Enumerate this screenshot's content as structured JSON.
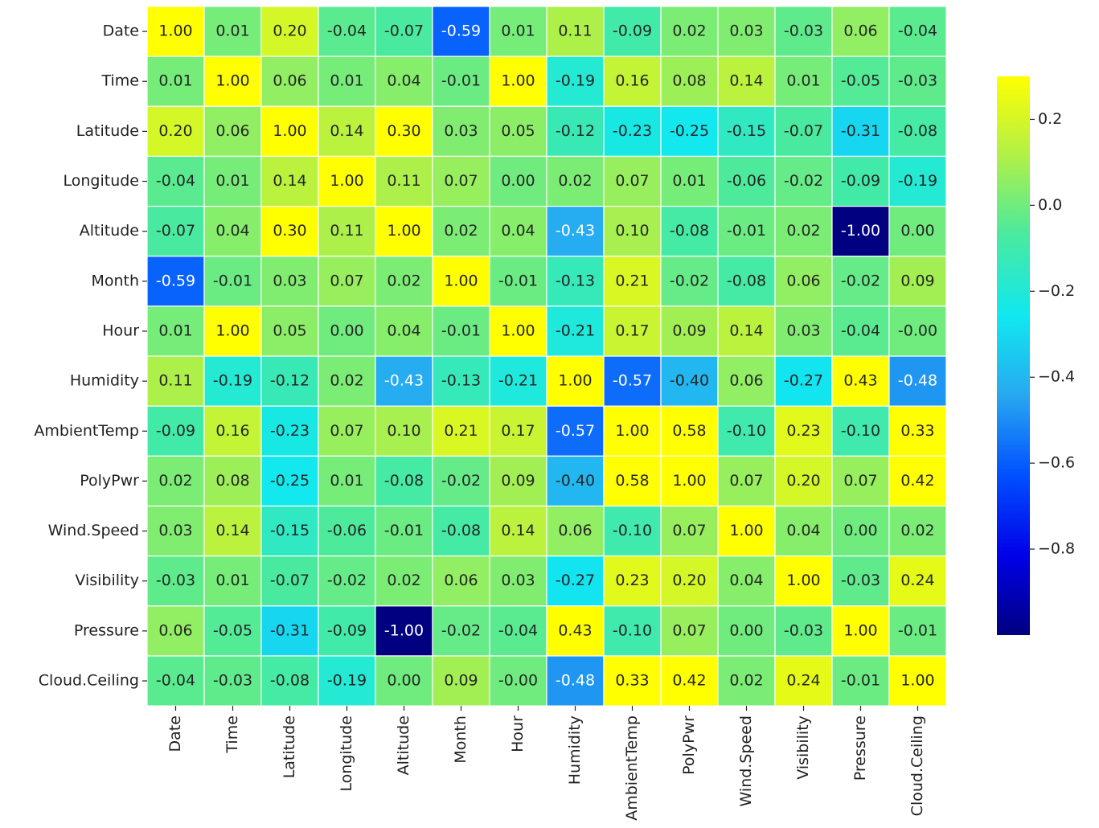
{
  "chart_data": {
    "type": "heatmap",
    "categories": [
      "Date",
      "Time",
      "Latitude",
      "Longitude",
      "Altitude",
      "Month",
      "Hour",
      "Humidity",
      "AmbientTemp",
      "PolyPwr",
      "Wind.Speed",
      "Visibility",
      "Pressure",
      "Cloud.Ceiling"
    ],
    "values": [
      [
        1.0,
        0.01,
        0.2,
        -0.04,
        -0.07,
        -0.59,
        0.01,
        0.11,
        -0.09,
        0.02,
        0.03,
        -0.03,
        0.06,
        -0.04
      ],
      [
        0.01,
        1.0,
        0.06,
        0.01,
        0.04,
        -0.01,
        1.0,
        -0.19,
        0.16,
        0.08,
        0.14,
        0.01,
        -0.05,
        -0.03
      ],
      [
        0.2,
        0.06,
        1.0,
        0.14,
        0.3,
        0.03,
        0.05,
        -0.12,
        -0.23,
        -0.25,
        -0.15,
        -0.07,
        -0.31,
        -0.08
      ],
      [
        -0.04,
        0.01,
        0.14,
        1.0,
        0.11,
        0.07,
        0.0,
        0.02,
        0.07,
        0.01,
        -0.06,
        -0.02,
        -0.09,
        -0.19
      ],
      [
        -0.07,
        0.04,
        0.3,
        0.11,
        1.0,
        0.02,
        0.04,
        -0.43,
        0.1,
        -0.08,
        -0.01,
        0.02,
        -1.0,
        0.0
      ],
      [
        -0.59,
        -0.01,
        0.03,
        0.07,
        0.02,
        1.0,
        -0.01,
        -0.13,
        0.21,
        -0.02,
        -0.08,
        0.06,
        -0.02,
        0.09
      ],
      [
        0.01,
        1.0,
        0.05,
        0.0,
        0.04,
        -0.01,
        1.0,
        -0.21,
        0.17,
        0.09,
        0.14,
        0.03,
        -0.04,
        0
      ],
      [
        0.11,
        -0.19,
        -0.12,
        0.02,
        -0.43,
        -0.13,
        -0.21,
        1.0,
        -0.57,
        -0.4,
        0.06,
        -0.27,
        0.43,
        -0.48
      ],
      [
        -0.09,
        0.16,
        -0.23,
        0.07,
        0.1,
        0.21,
        0.17,
        -0.57,
        1.0,
        0.58,
        -0.1,
        0.23,
        -0.1,
        0.33
      ],
      [
        0.02,
        0.08,
        -0.25,
        0.01,
        -0.08,
        -0.02,
        0.09,
        -0.4,
        0.58,
        1.0,
        0.07,
        0.2,
        0.07,
        0.42
      ],
      [
        0.03,
        0.14,
        -0.15,
        -0.06,
        -0.01,
        -0.08,
        0.14,
        0.06,
        -0.1,
        0.07,
        1.0,
        0.04,
        0.0,
        0.02
      ],
      [
        -0.03,
        0.01,
        -0.07,
        -0.02,
        0.02,
        0.06,
        0.03,
        -0.27,
        0.23,
        0.2,
        0.04,
        1.0,
        -0.03,
        0.24
      ],
      [
        0.06,
        -0.05,
        -0.31,
        -0.09,
        -1.0,
        -0.02,
        -0.04,
        0.43,
        -0.1,
        0.07,
        0.0,
        -0.03,
        1.0,
        -0.01
      ],
      [
        -0.04,
        -0.03,
        -0.08,
        -0.19,
        0.0,
        0.09,
        0,
        -0.48,
        0.33,
        0.42,
        0.02,
        0.24,
        -0.01,
        1.0
      ]
    ],
    "value_labels": [
      [
        "1.00",
        "0.01",
        "0.20",
        "-0.04",
        "-0.07",
        "-0.59",
        "0.01",
        "0.11",
        "-0.09",
        "0.02",
        "0.03",
        "-0.03",
        "0.06",
        "-0.04"
      ],
      [
        "0.01",
        "1.00",
        "0.06",
        "0.01",
        "0.04",
        "-0.01",
        "1.00",
        "-0.19",
        "0.16",
        "0.08",
        "0.14",
        "0.01",
        "-0.05",
        "-0.03"
      ],
      [
        "0.20",
        "0.06",
        "1.00",
        "0.14",
        "0.30",
        "0.03",
        "0.05",
        "-0.12",
        "-0.23",
        "-0.25",
        "-0.15",
        "-0.07",
        "-0.31",
        "-0.08"
      ],
      [
        "-0.04",
        "0.01",
        "0.14",
        "1.00",
        "0.11",
        "0.07",
        "0.00",
        "0.02",
        "0.07",
        "0.01",
        "-0.06",
        "-0.02",
        "-0.09",
        "-0.19"
      ],
      [
        "-0.07",
        "0.04",
        "0.30",
        "0.11",
        "1.00",
        "0.02",
        "0.04",
        "-0.43",
        "0.10",
        "-0.08",
        "-0.01",
        "0.02",
        "-1.00",
        "0.00"
      ],
      [
        "-0.59",
        "-0.01",
        "0.03",
        "0.07",
        "0.02",
        "1.00",
        "-0.01",
        "-0.13",
        "0.21",
        "-0.02",
        "-0.08",
        "0.06",
        "-0.02",
        "0.09"
      ],
      [
        "0.01",
        "1.00",
        "0.05",
        "0.00",
        "0.04",
        "-0.01",
        "1.00",
        "-0.21",
        "0.17",
        "0.09",
        "0.14",
        "0.03",
        "-0.04",
        "-0.00"
      ],
      [
        "0.11",
        "-0.19",
        "-0.12",
        "0.02",
        "-0.43",
        "-0.13",
        "-0.21",
        "1.00",
        "-0.57",
        "-0.40",
        "0.06",
        "-0.27",
        "0.43",
        "-0.48"
      ],
      [
        "-0.09",
        "0.16",
        "-0.23",
        "0.07",
        "0.10",
        "0.21",
        "0.17",
        "-0.57",
        "1.00",
        "0.58",
        "-0.10",
        "0.23",
        "-0.10",
        "0.33"
      ],
      [
        "0.02",
        "0.08",
        "-0.25",
        "0.01",
        "-0.08",
        "-0.02",
        "0.09",
        "-0.40",
        "0.58",
        "1.00",
        "0.07",
        "0.20",
        "0.07",
        "0.42"
      ],
      [
        "0.03",
        "0.14",
        "-0.15",
        "-0.06",
        "-0.01",
        "-0.08",
        "0.14",
        "0.06",
        "-0.10",
        "0.07",
        "1.00",
        "0.04",
        "0.00",
        "0.02"
      ],
      [
        "-0.03",
        "0.01",
        "-0.07",
        "-0.02",
        "0.02",
        "0.06",
        "0.03",
        "-0.27",
        "0.23",
        "0.20",
        "0.04",
        "1.00",
        "-0.03",
        "0.24"
      ],
      [
        "0.06",
        "-0.05",
        "-0.31",
        "-0.09",
        "-1.00",
        "-0.02",
        "-0.04",
        "0.43",
        "-0.10",
        "0.07",
        "0.00",
        "-0.03",
        "1.00",
        "-0.01"
      ],
      [
        "-0.04",
        "-0.03",
        "-0.08",
        "-0.19",
        "0.00",
        "0.09",
        "-0.00",
        "-0.48",
        "0.33",
        "0.42",
        "0.02",
        "0.24",
        "-0.01",
        "1.00"
      ]
    ],
    "colormap": [
      "#000080",
      "#0000e8",
      "#0050ff",
      "#28a8f0",
      "#10e8f0",
      "#48eaa0",
      "#b0f048",
      "#ffff00"
    ],
    "clim": [
      -1,
      0.3
    ],
    "cticks": [
      {
        "value": 0.2,
        "label": "0.2"
      },
      {
        "value": 0,
        "label": "0.0"
      },
      {
        "value": -0.2,
        "label": "−0.2"
      },
      {
        "value": -0.4,
        "label": "−0.4"
      },
      {
        "value": -0.6,
        "label": "−0.6"
      },
      {
        "value": -0.8,
        "label": "−0.8"
      }
    ]
  }
}
